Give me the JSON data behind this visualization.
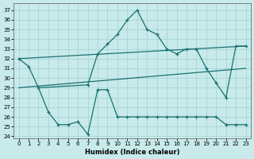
{
  "background_color": "#c8eaea",
  "grid_color": "#a0d0d0",
  "line_color": "#1a7070",
  "xlabel": "Humidex (Indice chaleur)",
  "xlim": [
    -0.5,
    23.5
  ],
  "ylim": [
    23.8,
    37.7
  ],
  "yticks": [
    24,
    25,
    26,
    27,
    28,
    29,
    30,
    31,
    32,
    33,
    34,
    35,
    36,
    37
  ],
  "xticks": [
    0,
    1,
    2,
    3,
    4,
    5,
    6,
    7,
    8,
    9,
    10,
    11,
    12,
    13,
    14,
    15,
    16,
    17,
    18,
    19,
    20,
    21,
    22,
    23
  ],
  "line1_x": [
    0,
    1,
    2,
    7,
    8,
    9,
    10,
    11,
    12,
    13,
    14,
    15,
    16,
    17,
    18,
    19,
    20,
    21,
    22,
    23
  ],
  "line1_y": [
    32.0,
    31.2,
    29.0,
    29.3,
    32.5,
    33.5,
    34.5,
    36.0,
    37.0,
    35.0,
    34.5,
    33.0,
    32.5,
    33.0,
    33.0,
    31.0,
    29.5,
    28.0,
    33.3,
    33.3
  ],
  "line2_x": [
    0,
    23
  ],
  "line2_y": [
    32.0,
    33.3
  ],
  "line3_x": [
    0,
    23
  ],
  "line3_y": [
    29.0,
    31.0
  ],
  "line4_x": [
    2,
    3,
    4,
    5,
    6,
    7,
    8,
    9,
    10,
    11,
    12,
    13,
    14,
    15,
    16,
    17,
    18,
    19,
    20,
    21,
    22,
    23
  ],
  "line4_y": [
    29.0,
    26.5,
    25.2,
    25.2,
    25.5,
    24.2,
    28.8,
    28.8,
    26.0,
    26.0,
    26.0,
    26.0,
    26.0,
    26.0,
    26.0,
    26.0,
    26.0,
    26.0,
    26.0,
    25.2,
    25.2,
    25.2
  ]
}
